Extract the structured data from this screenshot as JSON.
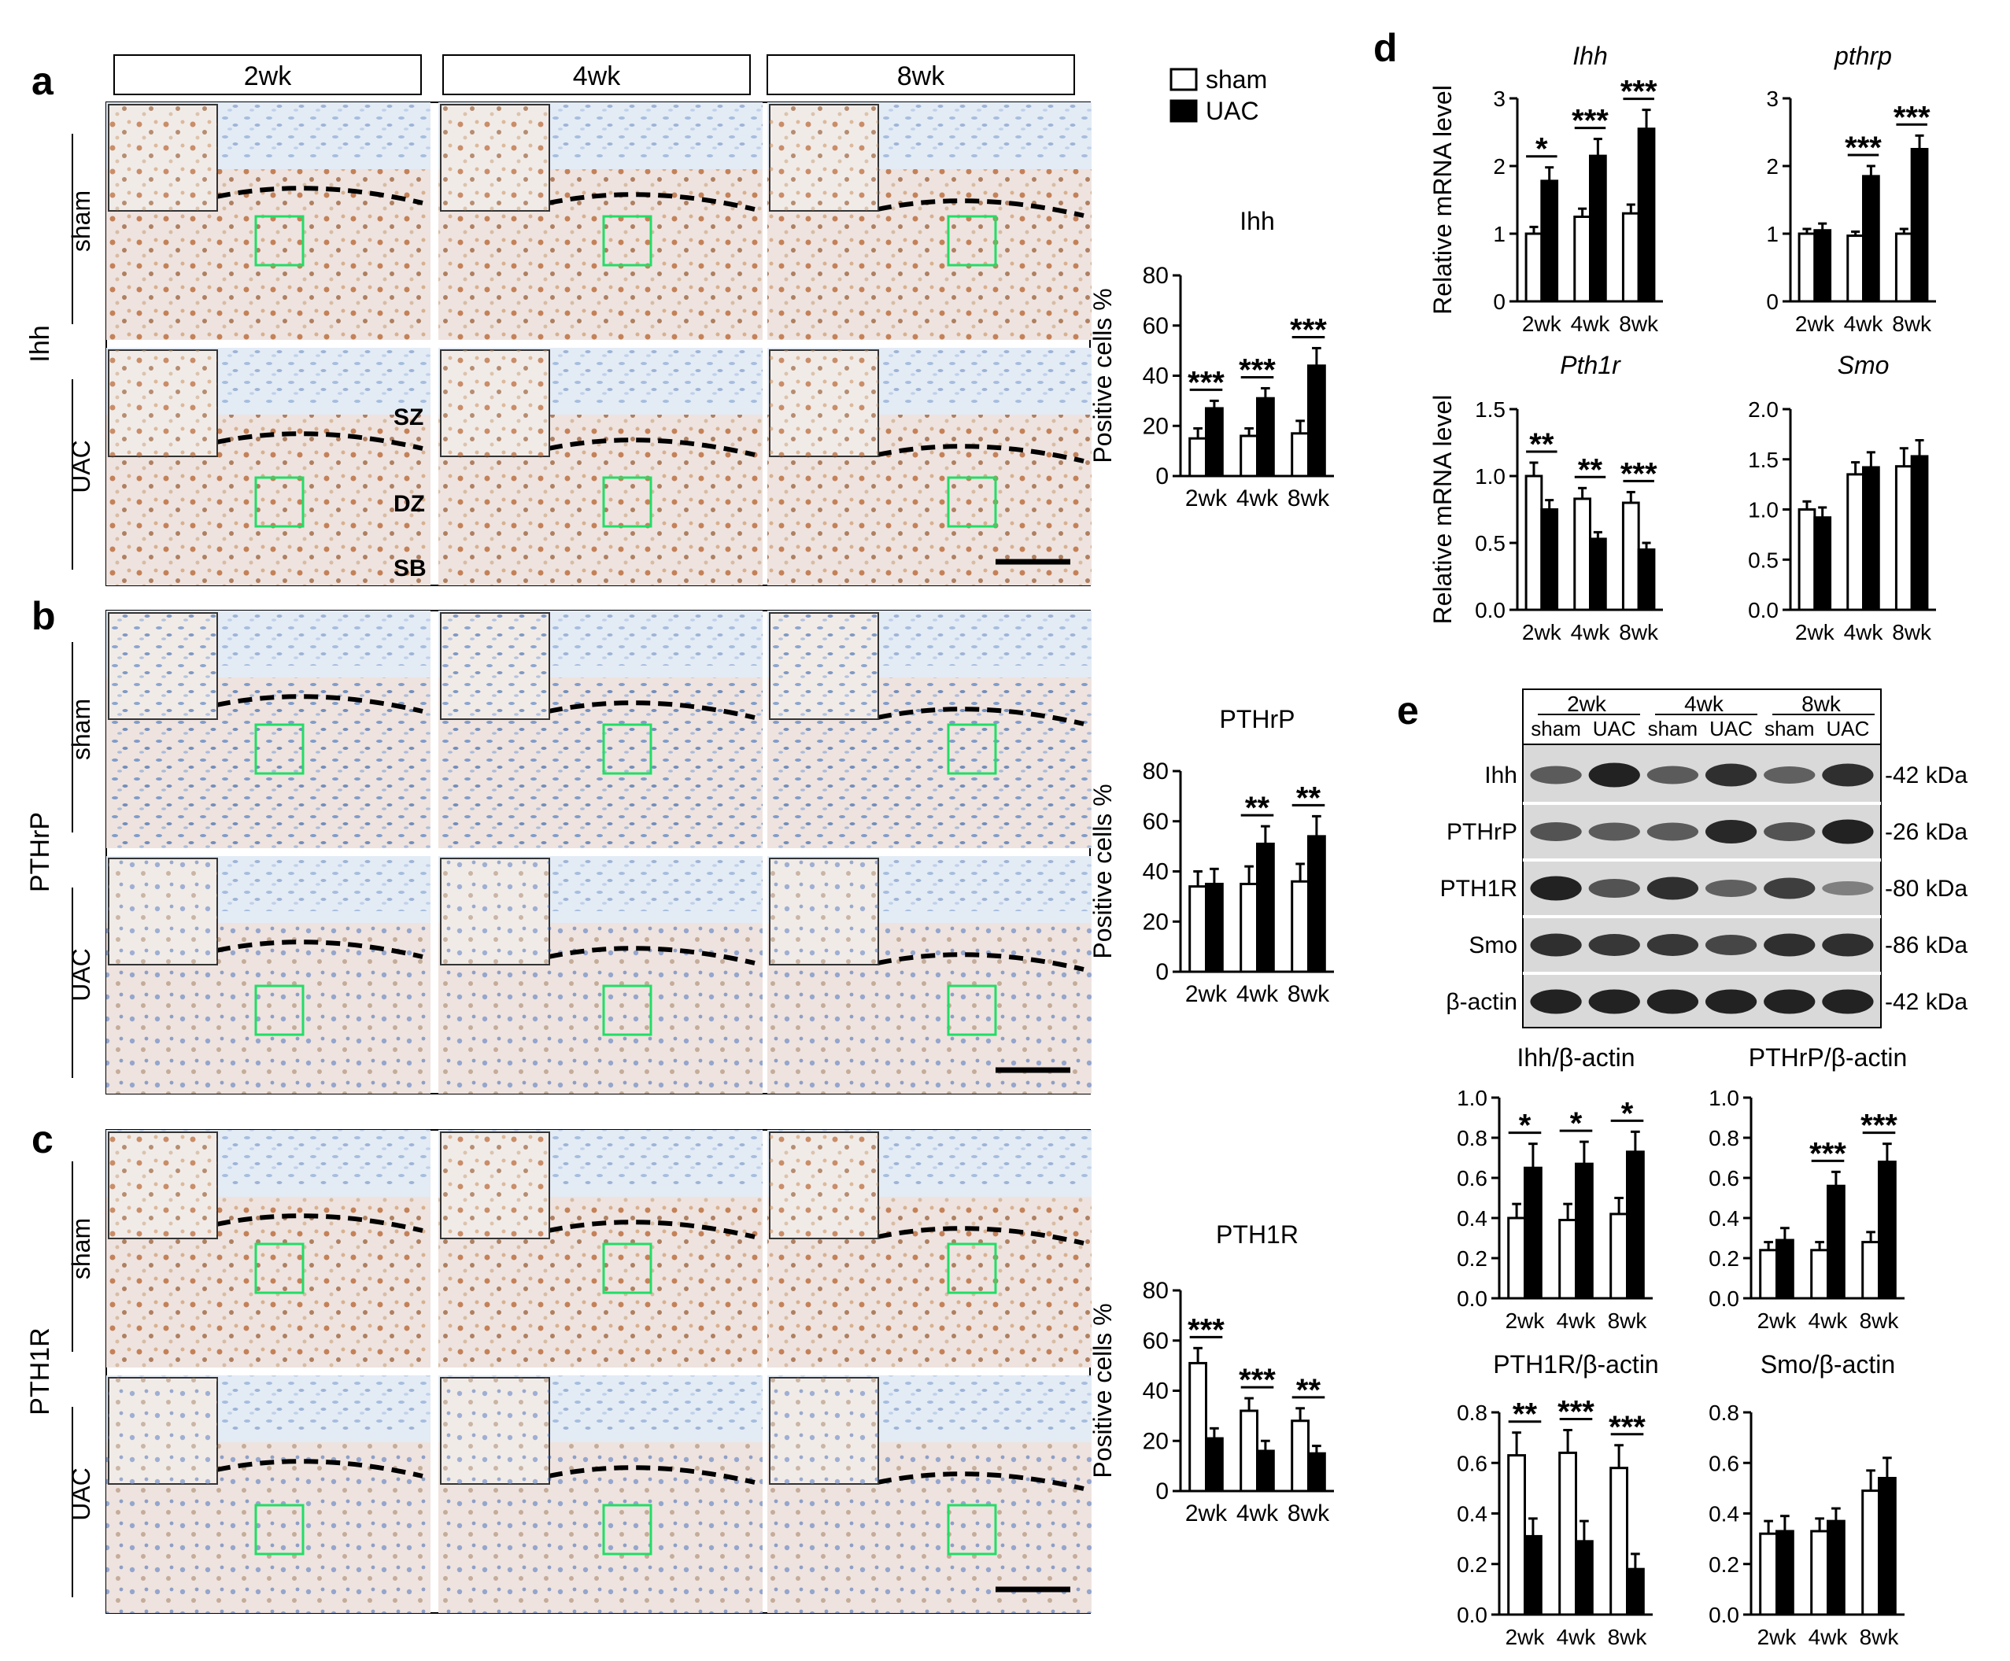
{
  "colors": {
    "sham_fill": "#ffffff",
    "uac_fill": "#000000",
    "roi_box": "#22dd66",
    "dashed_line": "#000000",
    "stain_brown": "#b5602a",
    "stain_blue": "#5a84c2",
    "tissue_light": "#eee3df",
    "blot_band": "#1a1a1a",
    "blot_bg": "#d9d9d9"
  },
  "panels": [
    "a",
    "b",
    "c",
    "d",
    "e"
  ],
  "micrograph": {
    "timepoints": [
      "2wk",
      "4wk",
      "8wk"
    ],
    "group_rows": [
      "sham",
      "UAC"
    ],
    "rows": [
      "Ihh",
      "PTHrP",
      "PTH1R"
    ],
    "zone_labels": [
      "SZ",
      "DZ",
      "SB"
    ]
  },
  "legend": {
    "sham": "sham",
    "uac": "UAC"
  },
  "western": {
    "timepoints": [
      "2wk",
      "4wk",
      "8wk"
    ],
    "lanes": [
      "sham",
      "UAC",
      "sham",
      "UAC",
      "sham",
      "UAC"
    ],
    "proteins": [
      "Ihh",
      "PTHrP",
      "PTH1R",
      "Smo",
      "β-actin"
    ],
    "sizes": [
      "-42 kDa",
      "-26 kDa",
      "-80 kDa",
      "-86 kDa",
      "-42 kDa"
    ],
    "band_intensity": [
      [
        0.55,
        0.95,
        0.55,
        0.85,
        0.5,
        0.85
      ],
      [
        0.6,
        0.55,
        0.55,
        0.9,
        0.6,
        0.95
      ],
      [
        0.95,
        0.6,
        0.85,
        0.5,
        0.75,
        0.3
      ],
      [
        0.85,
        0.8,
        0.8,
        0.7,
        0.85,
        0.85
      ],
      [
        0.95,
        0.95,
        0.95,
        0.95,
        0.95,
        0.95
      ]
    ]
  },
  "chart_data": [
    {
      "id": "a-ihh",
      "type": "bar",
      "title": "Ihh",
      "ylabel": "Positive cells %",
      "categories": [
        "2wk",
        "4wk",
        "8wk"
      ],
      "series": [
        {
          "name": "sham",
          "values": [
            15,
            16,
            17
          ],
          "errors": [
            4,
            3,
            5
          ]
        },
        {
          "name": "UAC",
          "values": [
            27,
            31,
            44
          ],
          "errors": [
            3,
            4,
            7
          ]
        }
      ],
      "ylim": [
        0,
        80
      ],
      "yticks": [
        "0",
        "20",
        "40",
        "60",
        "80"
      ],
      "significance": [
        "***",
        "***",
        "***"
      ]
    },
    {
      "id": "b-pthrp",
      "type": "bar",
      "title": "PTHrP",
      "ylabel": "Positive cells %",
      "categories": [
        "2wk",
        "4wk",
        "8wk"
      ],
      "series": [
        {
          "name": "sham",
          "values": [
            34,
            35,
            36
          ],
          "errors": [
            6,
            7,
            7
          ]
        },
        {
          "name": "UAC",
          "values": [
            35,
            51,
            54
          ],
          "errors": [
            6,
            7,
            8
          ]
        }
      ],
      "ylim": [
        0,
        80
      ],
      "yticks": [
        "0",
        "20",
        "40",
        "60",
        "80"
      ],
      "significance": [
        "",
        "**",
        "**"
      ]
    },
    {
      "id": "c-pth1r",
      "type": "bar",
      "title": "PTH1R",
      "ylabel": "Positive cells %",
      "categories": [
        "2wk",
        "4wk",
        "8wk"
      ],
      "series": [
        {
          "name": "sham",
          "values": [
            51,
            32,
            28
          ],
          "errors": [
            6,
            5,
            5
          ]
        },
        {
          "name": "UAC",
          "values": [
            21,
            16,
            15
          ],
          "errors": [
            4,
            4,
            3
          ]
        }
      ],
      "ylim": [
        0,
        80
      ],
      "yticks": [
        "0",
        "20",
        "40",
        "60",
        "80"
      ],
      "significance": [
        "***",
        "***",
        "**"
      ]
    },
    {
      "id": "d-ihh",
      "type": "bar",
      "title": "Ihh",
      "title_italic": true,
      "ylabel": "Relative mRNA level",
      "categories": [
        "2wk",
        "4wk",
        "8wk"
      ],
      "series": [
        {
          "name": "sham",
          "values": [
            1.0,
            1.25,
            1.3
          ],
          "errors": [
            0.1,
            0.12,
            0.13
          ]
        },
        {
          "name": "UAC",
          "values": [
            1.78,
            2.15,
            2.55
          ],
          "errors": [
            0.2,
            0.25,
            0.28
          ]
        }
      ],
      "ylim": [
        0,
        3
      ],
      "yticks": [
        "0",
        "1",
        "2",
        "3"
      ],
      "significance": [
        "*",
        "***",
        "***"
      ]
    },
    {
      "id": "d-pthrp",
      "type": "bar",
      "title": "pthrp",
      "title_italic": true,
      "ylabel": "",
      "categories": [
        "2wk",
        "4wk",
        "8wk"
      ],
      "series": [
        {
          "name": "sham",
          "values": [
            1.0,
            0.97,
            1.0
          ],
          "errors": [
            0.07,
            0.06,
            0.07
          ]
        },
        {
          "name": "UAC",
          "values": [
            1.05,
            1.85,
            2.25
          ],
          "errors": [
            0.1,
            0.15,
            0.2
          ]
        }
      ],
      "ylim": [
        0,
        3
      ],
      "yticks": [
        "0",
        "1",
        "2",
        "3"
      ],
      "significance": [
        "",
        "***",
        "***"
      ]
    },
    {
      "id": "d-pth1r",
      "type": "bar",
      "title": "Pth1r",
      "title_italic": true,
      "ylabel": "Relative mRNA level",
      "categories": [
        "2wk",
        "4wk",
        "8wk"
      ],
      "series": [
        {
          "name": "sham",
          "values": [
            1.0,
            0.83,
            0.8
          ],
          "errors": [
            0.1,
            0.08,
            0.08
          ]
        },
        {
          "name": "UAC",
          "values": [
            0.75,
            0.53,
            0.45
          ],
          "errors": [
            0.07,
            0.05,
            0.05
          ]
        }
      ],
      "ylim": [
        0,
        1.5
      ],
      "yticks": [
        "0.0",
        "0.5",
        "1.0",
        "1.5"
      ],
      "significance": [
        "**",
        "**",
        "***"
      ]
    },
    {
      "id": "d-smo",
      "type": "bar",
      "title": "Smo",
      "title_italic": true,
      "ylabel": "",
      "categories": [
        "2wk",
        "4wk",
        "8wk"
      ],
      "series": [
        {
          "name": "sham",
          "values": [
            1.0,
            1.35,
            1.43
          ],
          "errors": [
            0.08,
            0.12,
            0.18
          ]
        },
        {
          "name": "UAC",
          "values": [
            0.92,
            1.42,
            1.53
          ],
          "errors": [
            0.1,
            0.15,
            0.16
          ]
        }
      ],
      "ylim": [
        0,
        2.0
      ],
      "yticks": [
        "0.0",
        "0.5",
        "1.0",
        "1.5",
        "2.0"
      ],
      "significance": [
        "",
        "",
        ""
      ]
    },
    {
      "id": "e-ihh",
      "type": "bar",
      "title": "Ihh/β-actin",
      "ylabel": "",
      "categories": [
        "2wk",
        "4wk",
        "8wk"
      ],
      "series": [
        {
          "name": "sham",
          "values": [
            0.4,
            0.39,
            0.42
          ],
          "errors": [
            0.07,
            0.08,
            0.08
          ]
        },
        {
          "name": "UAC",
          "values": [
            0.65,
            0.67,
            0.73
          ],
          "errors": [
            0.12,
            0.11,
            0.1
          ]
        }
      ],
      "ylim": [
        0,
        1.0
      ],
      "yticks": [
        "0.0",
        "0.2",
        "0.4",
        "0.6",
        "0.8",
        "1.0"
      ],
      "significance": [
        "*",
        "*",
        "*"
      ]
    },
    {
      "id": "e-pthrp",
      "type": "bar",
      "title": "PTHrP/β-actin",
      "ylabel": "",
      "categories": [
        "2wk",
        "4wk",
        "8wk"
      ],
      "series": [
        {
          "name": "sham",
          "values": [
            0.24,
            0.24,
            0.28
          ],
          "errors": [
            0.04,
            0.04,
            0.05
          ]
        },
        {
          "name": "UAC",
          "values": [
            0.29,
            0.56,
            0.68
          ],
          "errors": [
            0.06,
            0.07,
            0.09
          ]
        }
      ],
      "ylim": [
        0,
        1.0
      ],
      "yticks": [
        "0.0",
        "0.2",
        "0.4",
        "0.6",
        "0.8",
        "1.0"
      ],
      "significance": [
        "",
        "***",
        "***"
      ]
    },
    {
      "id": "e-pth1r",
      "type": "bar",
      "title": "PTH1R/β-actin",
      "ylabel": "",
      "categories": [
        "2wk",
        "4wk",
        "8wk"
      ],
      "series": [
        {
          "name": "sham",
          "values": [
            0.63,
            0.64,
            0.58
          ],
          "errors": [
            0.09,
            0.09,
            0.09
          ]
        },
        {
          "name": "UAC",
          "values": [
            0.31,
            0.29,
            0.18
          ],
          "errors": [
            0.07,
            0.08,
            0.06
          ]
        }
      ],
      "ylim": [
        0,
        0.8
      ],
      "yticks": [
        "0.0",
        "0.2",
        "0.4",
        "0.6",
        "0.8"
      ],
      "significance": [
        "**",
        "***",
        "***"
      ]
    },
    {
      "id": "e-smo",
      "type": "bar",
      "title": "Smo/β-actin",
      "ylabel": "",
      "categories": [
        "2wk",
        "4wk",
        "8wk"
      ],
      "series": [
        {
          "name": "sham",
          "values": [
            0.32,
            0.33,
            0.49
          ],
          "errors": [
            0.05,
            0.05,
            0.08
          ]
        },
        {
          "name": "UAC",
          "values": [
            0.33,
            0.37,
            0.54
          ],
          "errors": [
            0.06,
            0.05,
            0.08
          ]
        }
      ],
      "ylim": [
        0,
        0.8
      ],
      "yticks": [
        "0.0",
        "0.2",
        "0.4",
        "0.6",
        "0.8"
      ],
      "significance": [
        "",
        "",
        ""
      ]
    }
  ]
}
